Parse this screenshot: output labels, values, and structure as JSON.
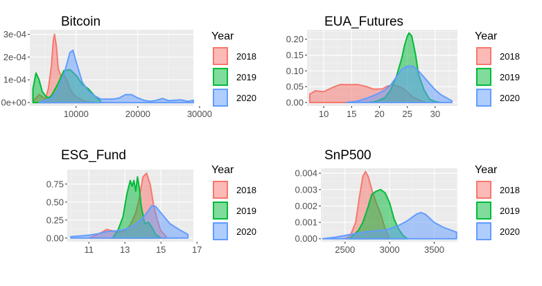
{
  "colors": {
    "2018": "#F8766D",
    "2019": "#00BA38",
    "2020": "#619CFF"
  },
  "chart_data": [
    {
      "type": "area",
      "title": "Bitcoin",
      "xlabel": "",
      "ylabel": "",
      "xlim": [
        2500,
        29000
      ],
      "ylim": [
        -1.5e-05,
        0.00032
      ],
      "xticks": [
        10000,
        20000,
        30000
      ],
      "xtick_labels": [
        "10000",
        "20000",
        "30000"
      ],
      "yticks": [
        0,
        0.0001,
        0.0002,
        0.0003
      ],
      "ytick_labels": [
        "0e+00",
        "1e-04",
        "2e-04",
        "3e-04"
      ],
      "legend": {
        "title": "Year",
        "position": "right",
        "entries": [
          "2018",
          "2019",
          "2020"
        ]
      },
      "series": [
        {
          "name": "2018",
          "x": [
            3000,
            4000,
            5000,
            5500,
            6000,
            6300,
            6500,
            6800,
            7100,
            7500,
            8000,
            8500,
            9000,
            9500,
            10000,
            11000,
            12000,
            13000
          ],
          "y": [
            5e-06,
            3.5e-05,
            1.5e-05,
            6e-05,
            0.00016,
            0.00027,
            0.0003,
            0.00025,
            0.00015,
            0.00012,
            0.00012,
            0.0001,
            6e-05,
            4e-05,
            2.5e-05,
            1e-05,
            3e-06,
            0
          ]
        },
        {
          "name": "2019",
          "x": [
            3000,
            3500,
            4000,
            4500,
            5000,
            5500,
            6000,
            7000,
            8000,
            9000,
            10000,
            11000,
            12000,
            13000,
            14000
          ],
          "y": [
            6e-05,
            0.00013,
            0.0001,
            5e-05,
            3e-05,
            2e-05,
            3e-05,
            8e-05,
            0.00014,
            0.000145,
            0.00012,
            8e-05,
            6e-05,
            3e-05,
            5e-06
          ]
        },
        {
          "name": "2020",
          "x": [
            4000,
            5000,
            6000,
            7000,
            8000,
            8500,
            9000,
            9500,
            10000,
            11000,
            12000,
            13000,
            14000,
            16000,
            17000,
            18000,
            19000,
            20000,
            21000,
            22000,
            23000,
            24000,
            25000,
            26000,
            27000,
            28000,
            29000
          ],
          "y": [
            0,
            1e-05,
            2e-05,
            5e-05,
            0.00012,
            0.00017,
            0.00022,
            0.00023,
            0.00018,
            9e-05,
            5e-05,
            3e-05,
            1.5e-05,
            1.5e-05,
            2e-05,
            3.5e-05,
            3.5e-05,
            2e-05,
            1e-05,
            5e-06,
            1e-05,
            1.8e-05,
            8e-06,
            1e-05,
            1.2e-05,
            5e-06,
            1e-05
          ]
        }
      ]
    },
    {
      "type": "area",
      "title": "EUA_Futures",
      "xlabel": "",
      "ylabel": "",
      "xlim": [
        7,
        34
      ],
      "ylim": [
        -0.011,
        0.23
      ],
      "xticks": [
        10,
        15,
        20,
        25,
        30
      ],
      "xtick_labels": [
        "10",
        "15",
        "20",
        "25",
        "30"
      ],
      "yticks": [
        0,
        0.05,
        0.1,
        0.15,
        0.2
      ],
      "ytick_labels": [
        "0.00",
        "0.05",
        "0.10",
        "0.15",
        "0.20"
      ],
      "legend": {
        "title": "Year",
        "position": "right",
        "entries": [
          "2018",
          "2019",
          "2020"
        ]
      },
      "series": [
        {
          "name": "2018",
          "x": [
            7.5,
            8.5,
            10,
            11.5,
            13,
            14.5,
            16,
            17.5,
            19,
            20.5,
            21.5,
            22.5,
            24,
            25,
            26,
            27.5,
            28.5
          ],
          "y": [
            0.027,
            0.037,
            0.034,
            0.047,
            0.057,
            0.056,
            0.057,
            0.051,
            0.042,
            0.043,
            0.052,
            0.056,
            0.047,
            0.033,
            0.017,
            0.005,
            0
          ]
        },
        {
          "name": "2019",
          "x": [
            18,
            19.5,
            21,
            22,
            23,
            24,
            24.5,
            25,
            25.3,
            25.8,
            26.5,
            27,
            28,
            29,
            30,
            31
          ],
          "y": [
            0,
            0.004,
            0.015,
            0.04,
            0.08,
            0.14,
            0.18,
            0.21,
            0.22,
            0.21,
            0.15,
            0.09,
            0.04,
            0.01,
            0.003,
            0
          ]
        },
        {
          "name": "2020",
          "x": [
            14,
            16,
            18,
            20,
            21,
            22,
            23,
            24,
            25,
            26,
            27,
            28,
            29,
            30,
            31,
            32,
            33
          ],
          "y": [
            0,
            0.004,
            0.015,
            0.03,
            0.04,
            0.055,
            0.08,
            0.105,
            0.115,
            0.115,
            0.1,
            0.08,
            0.06,
            0.04,
            0.025,
            0.015,
            0.005
          ]
        }
      ]
    },
    {
      "type": "area",
      "title": "ESG_Fund",
      "xlabel": "",
      "ylabel": "",
      "xlim": [
        9.8,
        16.8
      ],
      "ylim": [
        -0.05,
        0.95
      ],
      "xticks": [
        11,
        13,
        15,
        17
      ],
      "xtick_labels": [
        "11",
        "13",
        "15",
        "17"
      ],
      "yticks": [
        0,
        0.25,
        0.5,
        0.75
      ],
      "ytick_labels": [
        "0.00",
        "0.25",
        "0.50",
        "0.75"
      ],
      "legend": {
        "title": "Year",
        "position": "right",
        "entries": [
          "2018",
          "2019",
          "2020"
        ]
      },
      "series": [
        {
          "name": "2018",
          "x": [
            11,
            11.5,
            12,
            12.3,
            12.6,
            13,
            13.3,
            13.6,
            13.8,
            14,
            14.2,
            14.4,
            14.6,
            14.8,
            15,
            15.3
          ],
          "y": [
            0,
            0.05,
            0.12,
            0.1,
            0.08,
            0.1,
            0.18,
            0.35,
            0.55,
            0.85,
            0.9,
            0.75,
            0.45,
            0.25,
            0.1,
            0.02
          ]
        },
        {
          "name": "2019",
          "x": [
            12.3,
            12.6,
            12.9,
            13.1,
            13.3,
            13.4,
            13.5,
            13.6,
            13.7,
            13.8,
            13.9,
            14.1,
            14.3,
            14.5,
            14.7,
            15
          ],
          "y": [
            0,
            0.1,
            0.3,
            0.6,
            0.8,
            0.72,
            0.8,
            0.65,
            0.85,
            0.7,
            0.45,
            0.2,
            0.22,
            0.15,
            0.05,
            0
          ]
        },
        {
          "name": "2020",
          "x": [
            10,
            10.5,
            11,
            11.5,
            12,
            12.5,
            13,
            13.5,
            14,
            14.3,
            14.5,
            14.7,
            15,
            15.5,
            16,
            16.5
          ],
          "y": [
            0.02,
            0.03,
            0.04,
            0.06,
            0.09,
            0.1,
            0.12,
            0.18,
            0.28,
            0.38,
            0.45,
            0.44,
            0.35,
            0.2,
            0.12,
            0.05
          ]
        }
      ]
    },
    {
      "type": "area",
      "title": "SnP500",
      "xlabel": "",
      "ylabel": "",
      "xlim": [
        2230,
        3760
      ],
      "ylim": [
        -0.00018,
        0.0043
      ],
      "xticks": [
        2500,
        3000,
        3500
      ],
      "xtick_labels": [
        "2500",
        "3000",
        "3500"
      ],
      "yticks": [
        0,
        0.001,
        0.002,
        0.003,
        0.004
      ],
      "ytick_labels": [
        "0.000",
        "0.001",
        "0.002",
        "0.003",
        "0.004"
      ],
      "legend": {
        "title": "Year",
        "position": "right",
        "entries": [
          "2018",
          "2019",
          "2020"
        ]
      },
      "series": [
        {
          "name": "2018",
          "x": [
            2500,
            2560,
            2620,
            2660,
            2700,
            2730,
            2760,
            2800,
            2850,
            2900,
            2950,
            3000
          ],
          "y": [
            0,
            0.0002,
            0.001,
            0.0025,
            0.0038,
            0.0041,
            0.0038,
            0.003,
            0.0022,
            0.0015,
            0.0006,
            0
          ]
        },
        {
          "name": "2019",
          "x": [
            2550,
            2650,
            2700,
            2750,
            2800,
            2850,
            2900,
            2950,
            3000,
            3050,
            3100,
            3150,
            3200
          ],
          "y": [
            0,
            0.0005,
            0.001,
            0.0018,
            0.0027,
            0.0029,
            0.003,
            0.0028,
            0.0022,
            0.0012,
            0.0006,
            0.0002,
            0
          ]
        },
        {
          "name": "2020",
          "x": [
            2250,
            2400,
            2500,
            2600,
            2700,
            2800,
            2900,
            3000,
            3100,
            3200,
            3300,
            3350,
            3400,
            3500,
            3600,
            3700,
            3750
          ],
          "y": [
            0,
            0.0001,
            0.0002,
            0.0003,
            0.0004,
            0.00045,
            0.0005,
            0.0006,
            0.0008,
            0.0011,
            0.0015,
            0.0016,
            0.0015,
            0.001,
            0.0007,
            0.0005,
            0.0004
          ]
        }
      ]
    }
  ]
}
